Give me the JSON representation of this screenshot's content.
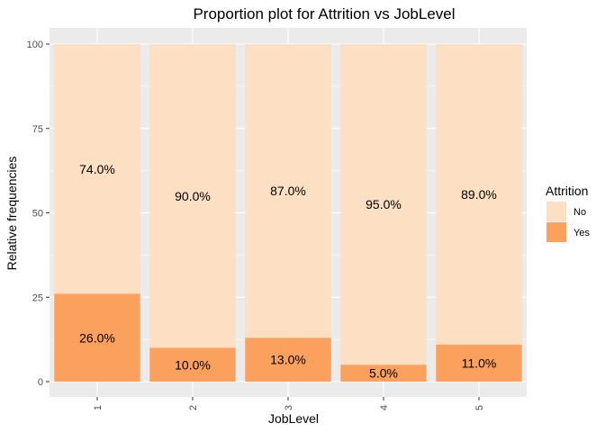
{
  "chart_data": {
    "type": "bar",
    "stacked": true,
    "title": "Proportion plot for Attrition vs JobLevel",
    "xlabel": "JobLevel",
    "ylabel": "Relative frequencies",
    "categories": [
      "1",
      "2",
      "3",
      "4",
      "5"
    ],
    "ylim": [
      0,
      100
    ],
    "yticks": [
      0,
      25,
      50,
      75,
      100
    ],
    "grid": true,
    "legend": {
      "title": "Attrition",
      "position": "right"
    },
    "series": [
      {
        "name": "Yes",
        "color": "#FCA05E",
        "values": [
          26.0,
          10.0,
          13.0,
          5.0,
          11.0
        ],
        "labels": [
          "26.0%",
          "10.0%",
          "13.0%",
          "5.0%",
          "11.0%"
        ]
      },
      {
        "name": "No",
        "color": "#FDDFC3",
        "values": [
          74.0,
          90.0,
          87.0,
          95.0,
          89.0
        ],
        "labels": [
          "74.0%",
          "90.0%",
          "87.0%",
          "95.0%",
          "89.0%"
        ]
      }
    ],
    "legend_order": [
      "No",
      "Yes"
    ],
    "panel_background": "#EBEBEB",
    "grid_color": "#FFFFFF"
  }
}
